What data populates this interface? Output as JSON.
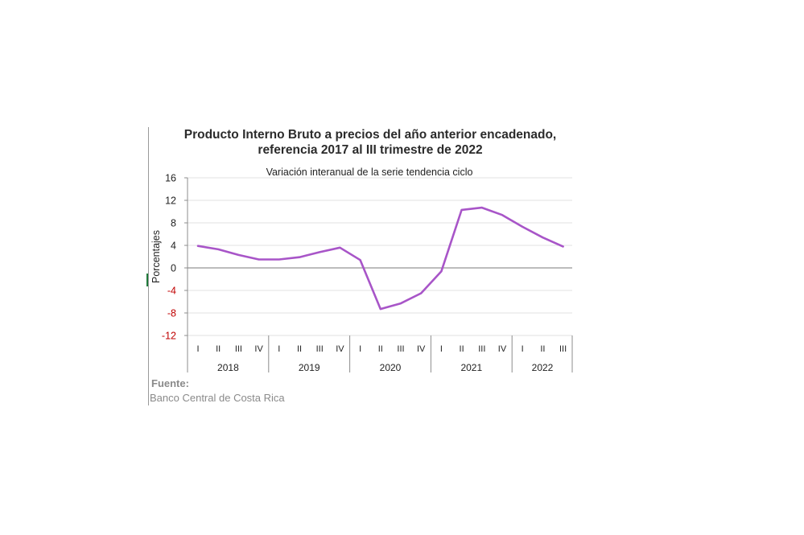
{
  "chart_data": {
    "type": "line",
    "title_lines": [
      "Producto Interno Bruto a precios del año anterior encadenado,",
      "referencia 2017 al III trimestre de 2022"
    ],
    "subtitle": "Variación interanual de la serie tendencia ciclo",
    "ylabel": "Porcentajes",
    "ylim": [
      -12,
      16
    ],
    "yticks": [
      "16",
      "12",
      "8",
      "4",
      "0",
      "-4",
      "-8",
      "-12"
    ],
    "negative_tick_color": "#c00000",
    "grid": true,
    "quarter_labels": [
      "I",
      "II",
      "III",
      "IV",
      "I",
      "II",
      "III",
      "IV",
      "I",
      "II",
      "III",
      "IV",
      "I",
      "II",
      "III",
      "IV",
      "I",
      "II",
      "III"
    ],
    "years": [
      {
        "label": "2018",
        "quarters": 4
      },
      {
        "label": "2019",
        "quarters": 4
      },
      {
        "label": "2020",
        "quarters": 4
      },
      {
        "label": "2021",
        "quarters": 4
      },
      {
        "label": "2022",
        "quarters": 3
      }
    ],
    "series": [
      {
        "color": "#a855c8",
        "values": [
          3.9,
          3.3,
          2.3,
          1.5,
          1.5,
          1.9,
          2.8,
          3.6,
          1.4,
          -7.3,
          -6.3,
          -4.5,
          -0.6,
          10.3,
          10.7,
          9.4,
          7.3,
          5.4,
          3.8
        ]
      }
    ]
  },
  "footer": {
    "source_label": "Fuente:",
    "source_text": "Banco Central de Costa Rica"
  }
}
